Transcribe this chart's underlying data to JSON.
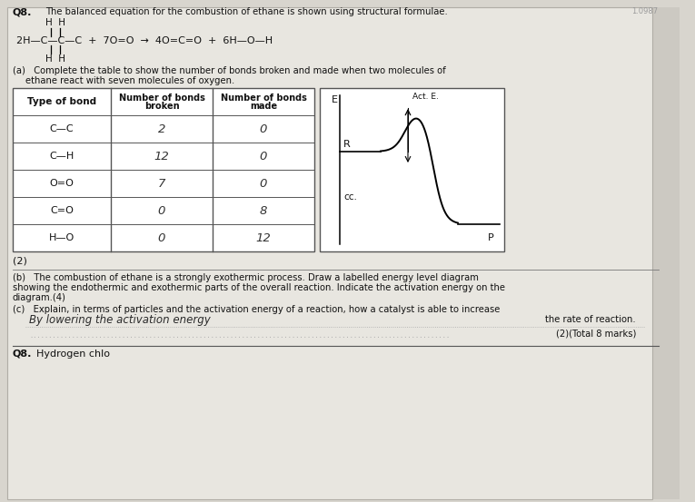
{
  "bg_color": "#d8d5ce",
  "page_color": "#e8e6e0",
  "q_number": "Q8.",
  "q_text": "The balanced equation for the combustion of ethane is shown using structural formulae.",
  "table_headers": [
    "Type of bond",
    "Number of bonds\nbroken",
    "Number of bonds\nmade"
  ],
  "table_rows": [
    [
      "C—C",
      "2",
      "0"
    ],
    [
      "C—H",
      "12",
      "0"
    ],
    [
      "O=O",
      "7",
      "0"
    ],
    [
      "C=O",
      "0",
      "8"
    ],
    [
      "H—O",
      "0",
      "12"
    ]
  ],
  "diag_labels": {
    "E": "E",
    "R": "R",
    "act_e": "Act. E.",
    "cc": "cc.",
    "P": "P",
    "down_arrow": "↓"
  },
  "text_b": "(b)   The combustion of ethane is a strongly exothermic process. Draw a labelled energy level diagram\nshowing the endothermic and exothermic parts of the overall reaction. Indicate the activation energy on the\ndiagram.(4)",
  "text_c": "(c)   Explain, in terms of particles and the activation energy of a reaction, how a catalyst is able to increase",
  "text_c2": "the rate of reaction.",
  "answer_text": "By lowering the activation energy",
  "answer_dotline": ".............................................................................................................",
  "total_marks": "(2)(Total 8 marks)",
  "q8_next": "Q8.",
  "q8_next2": "Hydrogen chlo",
  "part2_label": "(2)",
  "page_num": "1.0987"
}
